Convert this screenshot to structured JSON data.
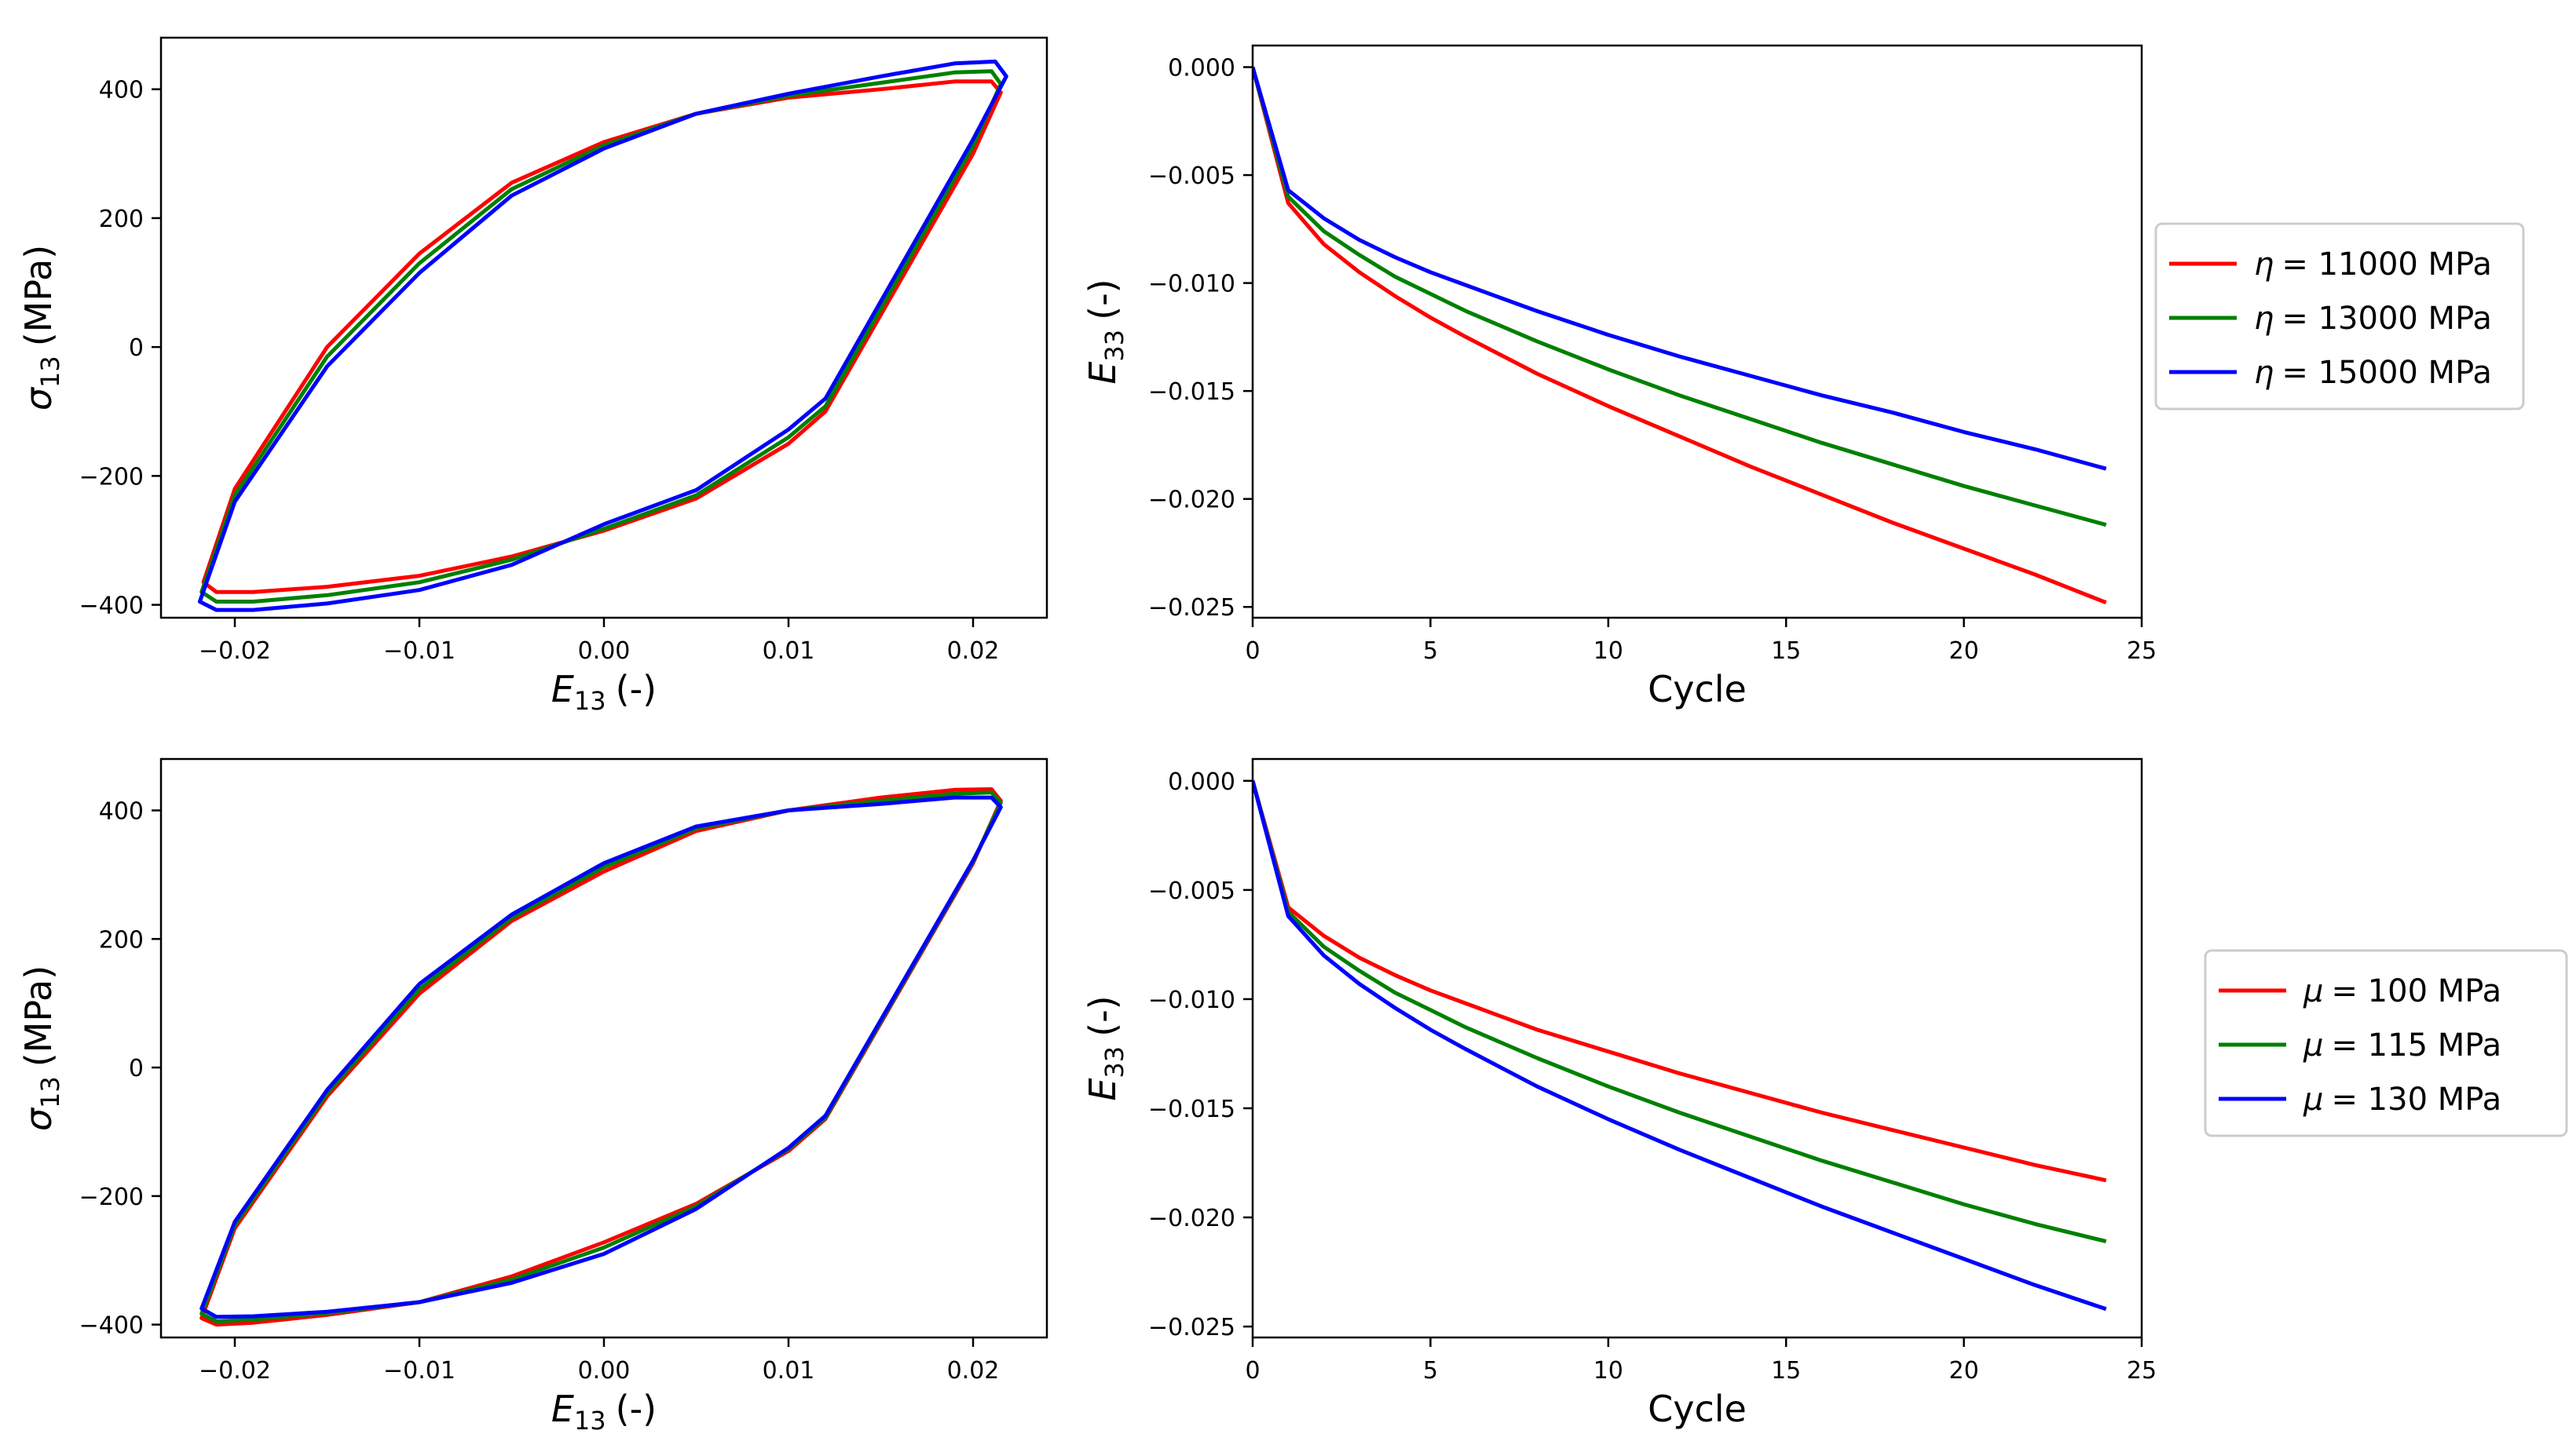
{
  "figure": {
    "legends": [
      {
        "symbol": "η",
        "entries": [
          "= 11000 MPa",
          "= 13000 MPa",
          "= 15000 MPa"
        ]
      },
      {
        "symbol": "μ",
        "entries": [
          "= 100 MPa",
          "= 115 MPa",
          "= 130 MPa"
        ]
      }
    ],
    "colors": [
      "#ff0000",
      "#008000",
      "#0000ff"
    ]
  },
  "chart_data": [
    {
      "id": "top-left",
      "type": "line",
      "title": "",
      "xlabel": "E",
      "xlabel_sub": "13",
      "xlabel_suffix": "(-)",
      "ylabel": "σ",
      "ylabel_sub": "13",
      "ylabel_suffix": "(MPa)",
      "xlim": [
        -0.024,
        0.024
      ],
      "ylim": [
        -420,
        480
      ],
      "xticks": [
        -0.02,
        -0.01,
        0.0,
        0.01,
        0.02
      ],
      "xtick_labels": [
        "−0.02",
        "−0.01",
        "0.00",
        "0.01",
        "0.02"
      ],
      "yticks": [
        -400,
        -200,
        0,
        200,
        400
      ],
      "ytick_labels": [
        "−400",
        "−200",
        "0",
        "200",
        "400"
      ],
      "series": [
        {
          "name": "η = 11000 MPa",
          "color": "#ff0000",
          "x": [
            0.0,
            0.005,
            0.01,
            0.012,
            0.02,
            0.0215,
            0.021,
            0.019,
            0.015,
            0.01,
            0.005,
            0.0,
            -0.005,
            -0.01,
            -0.015,
            -0.02,
            -0.0217,
            -0.021,
            -0.019,
            -0.015,
            -0.01,
            -0.005,
            0.0
          ],
          "y": [
            -285,
            -235,
            -150,
            -100,
            300,
            395,
            412,
            412,
            400,
            387,
            362,
            318,
            255,
            145,
            0,
            -220,
            -365,
            -380,
            -380,
            -372,
            -355,
            -325,
            -285
          ]
        },
        {
          "name": "η = 13000 MPa",
          "color": "#008000",
          "x": [
            0.0,
            0.005,
            0.01,
            0.012,
            0.02,
            0.0215,
            0.021,
            0.019,
            0.015,
            0.01,
            0.005,
            0.0,
            -0.005,
            -0.01,
            -0.015,
            -0.02,
            -0.0218,
            -0.021,
            -0.019,
            -0.015,
            -0.01,
            -0.005,
            0.0
          ],
          "y": [
            -282,
            -230,
            -140,
            -92,
            312,
            408,
            428,
            426,
            410,
            390,
            362,
            313,
            245,
            130,
            -15,
            -230,
            -380,
            -395,
            -395,
            -385,
            -365,
            -330,
            -282
          ]
        },
        {
          "name": "η = 15000 MPa",
          "color": "#0000ff",
          "x": [
            0.0,
            0.005,
            0.01,
            0.012,
            0.02,
            0.0218,
            0.0212,
            0.019,
            0.015,
            0.01,
            0.005,
            0.0,
            -0.005,
            -0.01,
            -0.015,
            -0.02,
            -0.0219,
            -0.021,
            -0.019,
            -0.015,
            -0.01,
            -0.005,
            0.0
          ],
          "y": [
            -275,
            -222,
            -128,
            -80,
            322,
            420,
            443,
            440,
            420,
            393,
            362,
            308,
            235,
            115,
            -30,
            -240,
            -395,
            -408,
            -408,
            -398,
            -377,
            -338,
            -275
          ]
        }
      ]
    },
    {
      "id": "top-right",
      "type": "line",
      "title": "",
      "xlabel": "Cycle",
      "ylabel": "E",
      "ylabel_sub": "33",
      "ylabel_suffix": "(-)",
      "xlim": [
        0,
        25
      ],
      "ylim": [
        -0.0255,
        0.001
      ],
      "xticks": [
        0,
        5,
        10,
        15,
        20,
        25
      ],
      "xtick_labels": [
        "0",
        "5",
        "10",
        "15",
        "20",
        "25"
      ],
      "yticks": [
        0.0,
        -0.005,
        -0.01,
        -0.015,
        -0.02,
        -0.025
      ],
      "ytick_labels": [
        "0.000",
        "−0.005",
        "−0.010",
        "−0.015",
        "−0.020",
        "−0.025"
      ],
      "x": [
        0,
        1,
        2,
        3,
        4,
        5,
        6,
        8,
        10,
        12,
        14,
        16,
        18,
        20,
        22,
        24
      ],
      "series": [
        {
          "name": "η = 11000 MPa",
          "color": "#ff0000",
          "values": [
            0,
            -0.0063,
            -0.0082,
            -0.0095,
            -0.0106,
            -0.0116,
            -0.0125,
            -0.0142,
            -0.0157,
            -0.0171,
            -0.0185,
            -0.0198,
            -0.0211,
            -0.0223,
            -0.0235,
            -0.0248
          ]
        },
        {
          "name": "η = 13000 MPa",
          "color": "#008000",
          "values": [
            0,
            -0.006,
            -0.0076,
            -0.0087,
            -0.0097,
            -0.0105,
            -0.0113,
            -0.0127,
            -0.014,
            -0.0152,
            -0.0163,
            -0.0174,
            -0.0184,
            -0.0194,
            -0.0203,
            -0.0212
          ]
        },
        {
          "name": "η = 15000 MPa",
          "color": "#0000ff",
          "values": [
            0,
            -0.0057,
            -0.007,
            -0.008,
            -0.0088,
            -0.0095,
            -0.0101,
            -0.0113,
            -0.0124,
            -0.0134,
            -0.0143,
            -0.0152,
            -0.016,
            -0.0169,
            -0.0177,
            -0.0186
          ]
        }
      ]
    },
    {
      "id": "bottom-left",
      "type": "line",
      "title": "",
      "xlabel": "E",
      "xlabel_sub": "13",
      "xlabel_suffix": "(-)",
      "ylabel": "σ",
      "ylabel_sub": "13",
      "ylabel_suffix": "(MPa)",
      "xlim": [
        -0.024,
        0.024
      ],
      "ylim": [
        -420,
        480
      ],
      "xticks": [
        -0.02,
        -0.01,
        0.0,
        0.01,
        0.02
      ],
      "xtick_labels": [
        "−0.02",
        "−0.01",
        "0.00",
        "0.01",
        "0.02"
      ],
      "yticks": [
        -400,
        -200,
        0,
        200,
        400
      ],
      "ytick_labels": [
        "−400",
        "−200",
        "0",
        "200",
        "400"
      ],
      "series": [
        {
          "name": "μ = 100 MPa",
          "color": "#ff0000",
          "x": [
            0.0,
            0.005,
            0.01,
            0.012,
            0.02,
            0.0215,
            0.021,
            0.019,
            0.015,
            0.01,
            0.005,
            0.0,
            -0.005,
            -0.01,
            -0.015,
            -0.02,
            -0.0218,
            -0.021,
            -0.019,
            -0.015,
            -0.01,
            -0.005,
            0.0
          ],
          "y": [
            -272,
            -212,
            -130,
            -80,
            318,
            415,
            433,
            432,
            420,
            400,
            368,
            305,
            228,
            115,
            -45,
            -250,
            -390,
            -400,
            -397,
            -385,
            -365,
            -325,
            -272
          ]
        },
        {
          "name": "μ = 115 MPa",
          "color": "#008000",
          "x": [
            0.0,
            0.005,
            0.01,
            0.012,
            0.02,
            0.0215,
            0.021,
            0.019,
            0.015,
            0.01,
            0.005,
            0.0,
            -0.005,
            -0.01,
            -0.015,
            -0.02,
            -0.0218,
            -0.021,
            -0.019,
            -0.015,
            -0.01,
            -0.005,
            0.0
          ],
          "y": [
            -280,
            -216,
            -127,
            -78,
            320,
            412,
            428,
            426,
            415,
            400,
            372,
            312,
            233,
            122,
            -40,
            -245,
            -383,
            -395,
            -392,
            -382,
            -365,
            -330,
            -280
          ]
        },
        {
          "name": "μ = 130 MPa",
          "color": "#0000ff",
          "x": [
            0.0,
            0.005,
            0.01,
            0.012,
            0.02,
            0.0215,
            0.021,
            0.019,
            0.015,
            0.01,
            0.005,
            0.0,
            -0.005,
            -0.01,
            -0.015,
            -0.02,
            -0.0218,
            -0.021,
            -0.019,
            -0.015,
            -0.01,
            -0.005,
            0.0
          ],
          "y": [
            -290,
            -220,
            -125,
            -75,
            322,
            405,
            420,
            420,
            410,
            400,
            375,
            318,
            238,
            130,
            -35,
            -240,
            -375,
            -388,
            -387,
            -380,
            -365,
            -335,
            -290
          ]
        }
      ]
    },
    {
      "id": "bottom-right",
      "type": "line",
      "title": "",
      "xlabel": "Cycle",
      "ylabel": "E",
      "ylabel_sub": "33",
      "ylabel_suffix": "(-)",
      "xlim": [
        0,
        25
      ],
      "ylim": [
        -0.0255,
        0.001
      ],
      "xticks": [
        0,
        5,
        10,
        15,
        20,
        25
      ],
      "xtick_labels": [
        "0",
        "5",
        "10",
        "15",
        "20",
        "25"
      ],
      "yticks": [
        0.0,
        -0.005,
        -0.01,
        -0.015,
        -0.02,
        -0.025
      ],
      "ytick_labels": [
        "0.000",
        "−0.005",
        "−0.010",
        "−0.015",
        "−0.020",
        "−0.025"
      ],
      "x": [
        0,
        1,
        2,
        3,
        4,
        5,
        6,
        8,
        10,
        12,
        14,
        16,
        18,
        20,
        22,
        24
      ],
      "series": [
        {
          "name": "μ = 100 MPa",
          "color": "#ff0000",
          "values": [
            0,
            -0.0058,
            -0.0071,
            -0.0081,
            -0.0089,
            -0.0096,
            -0.0102,
            -0.0114,
            -0.0124,
            -0.0134,
            -0.0143,
            -0.0152,
            -0.016,
            -0.0168,
            -0.0176,
            -0.0183
          ]
        },
        {
          "name": "μ = 115 MPa",
          "color": "#008000",
          "values": [
            0,
            -0.006,
            -0.0076,
            -0.0087,
            -0.0097,
            -0.0105,
            -0.0113,
            -0.0127,
            -0.014,
            -0.0152,
            -0.0163,
            -0.0174,
            -0.0184,
            -0.0194,
            -0.0203,
            -0.0211
          ]
        },
        {
          "name": "μ = 130 MPa",
          "color": "#0000ff",
          "values": [
            0,
            -0.0062,
            -0.008,
            -0.0093,
            -0.0104,
            -0.0114,
            -0.0123,
            -0.014,
            -0.0155,
            -0.0169,
            -0.0182,
            -0.0195,
            -0.0207,
            -0.0219,
            -0.0231,
            -0.0242
          ]
        }
      ]
    }
  ]
}
